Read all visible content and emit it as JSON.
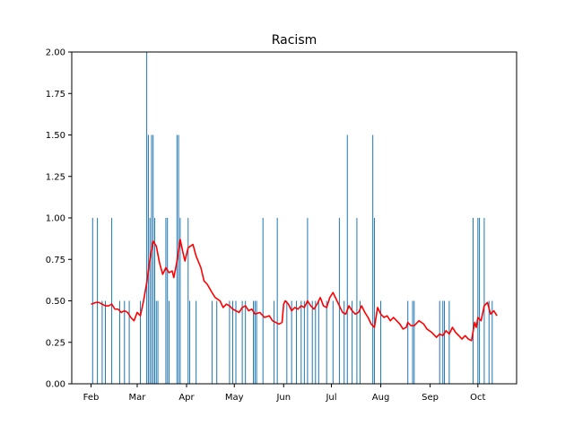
{
  "chart_data": {
    "type": "bar",
    "title": "Racism",
    "xlabel": "",
    "ylabel": "",
    "ylim": [
      0,
      2.0
    ],
    "y_ticks": [
      "0.00",
      "0.25",
      "0.50",
      "0.75",
      "1.00",
      "1.25",
      "1.50",
      "1.75",
      "2.00"
    ],
    "x_ticks": [
      "Feb",
      "Mar",
      "Apr",
      "May",
      "Jun",
      "Jul",
      "Aug",
      "Sep",
      "Oct"
    ],
    "grid": false,
    "legend": "none",
    "colors": {
      "bars": "#1f77b4",
      "line": "#ff0000"
    },
    "bars": [
      {
        "x": "02-02",
        "y": 1.0
      },
      {
        "x": "02-05",
        "y": 1.0
      },
      {
        "x": "02-08",
        "y": 0.5
      },
      {
        "x": "02-10",
        "y": 0.5
      },
      {
        "x": "02-14",
        "y": 1.0
      },
      {
        "x": "02-19",
        "y": 0.5
      },
      {
        "x": "02-22",
        "y": 0.5
      },
      {
        "x": "02-25",
        "y": 0.5
      },
      {
        "x": "03-03",
        "y": 0.5
      },
      {
        "x": "03-07",
        "y": 2.0
      },
      {
        "x": "03-08",
        "y": 1.5
      },
      {
        "x": "03-09",
        "y": 1.0
      },
      {
        "x": "03-10",
        "y": 1.5
      },
      {
        "x": "03-11",
        "y": 1.5
      },
      {
        "x": "03-12",
        "y": 1.0
      },
      {
        "x": "03-13",
        "y": 0.5
      },
      {
        "x": "03-14",
        "y": 0.5
      },
      {
        "x": "03-19",
        "y": 1.0
      },
      {
        "x": "03-20",
        "y": 1.0
      },
      {
        "x": "03-21",
        "y": 0.5
      },
      {
        "x": "03-26",
        "y": 1.5
      },
      {
        "x": "03-27",
        "y": 1.5
      },
      {
        "x": "03-28",
        "y": 1.0
      },
      {
        "x": "04-02",
        "y": 1.0
      },
      {
        "x": "04-03",
        "y": 0.5
      },
      {
        "x": "04-07",
        "y": 0.5
      },
      {
        "x": "04-17",
        "y": 0.5
      },
      {
        "x": "04-20",
        "y": 0.5
      },
      {
        "x": "04-28",
        "y": 0.5
      },
      {
        "x": "04-30",
        "y": 0.5
      },
      {
        "x": "05-02",
        "y": 0.5
      },
      {
        "x": "05-06",
        "y": 0.5
      },
      {
        "x": "05-08",
        "y": 0.5
      },
      {
        "x": "05-13",
        "y": 0.5
      },
      {
        "x": "05-14",
        "y": 0.5
      },
      {
        "x": "05-15",
        "y": 0.5
      },
      {
        "x": "05-19",
        "y": 1.0
      },
      {
        "x": "05-26",
        "y": 0.5
      },
      {
        "x": "05-28",
        "y": 1.0
      },
      {
        "x": "06-03",
        "y": 0.5
      },
      {
        "x": "06-06",
        "y": 0.5
      },
      {
        "x": "06-09",
        "y": 0.5
      },
      {
        "x": "06-12",
        "y": 0.5
      },
      {
        "x": "06-14",
        "y": 0.5
      },
      {
        "x": "06-16",
        "y": 1.0
      },
      {
        "x": "06-19",
        "y": 0.5
      },
      {
        "x": "06-21",
        "y": 0.5
      },
      {
        "x": "06-23",
        "y": 0.5
      },
      {
        "x": "06-28",
        "y": 0.5
      },
      {
        "x": "07-02",
        "y": 0.5
      },
      {
        "x": "07-06",
        "y": 1.0
      },
      {
        "x": "07-09",
        "y": 0.5
      },
      {
        "x": "07-11",
        "y": 1.5
      },
      {
        "x": "07-14",
        "y": 0.5
      },
      {
        "x": "07-17",
        "y": 1.0
      },
      {
        "x": "07-19",
        "y": 0.5
      },
      {
        "x": "07-27",
        "y": 1.5
      },
      {
        "x": "07-28",
        "y": 1.0
      },
      {
        "x": "08-01",
        "y": 0.5
      },
      {
        "x": "08-18",
        "y": 0.5
      },
      {
        "x": "08-21",
        "y": 0.5
      },
      {
        "x": "08-22",
        "y": 0.5
      },
      {
        "x": "09-07",
        "y": 0.5
      },
      {
        "x": "09-09",
        "y": 0.5
      },
      {
        "x": "09-10",
        "y": 0.5
      },
      {
        "x": "09-13",
        "y": 0.5
      },
      {
        "x": "09-28",
        "y": 1.0
      },
      {
        "x": "10-01",
        "y": 1.0
      },
      {
        "x": "10-02",
        "y": 1.0
      },
      {
        "x": "10-05",
        "y": 1.0
      },
      {
        "x": "10-08",
        "y": 0.5
      },
      {
        "x": "10-10",
        "y": 0.5
      }
    ],
    "series": [
      {
        "type": "line",
        "points": [
          [
            "02-01",
            0.48
          ],
          [
            "02-04",
            0.49
          ],
          [
            "02-06",
            0.49
          ],
          [
            "02-08",
            0.48
          ],
          [
            "02-10",
            0.47
          ],
          [
            "02-12",
            0.47
          ],
          [
            "02-14",
            0.48
          ],
          [
            "02-16",
            0.45
          ],
          [
            "02-18",
            0.45
          ],
          [
            "02-20",
            0.43
          ],
          [
            "02-22",
            0.44
          ],
          [
            "02-24",
            0.43
          ],
          [
            "02-26",
            0.4
          ],
          [
            "02-28",
            0.38
          ],
          [
            "03-01",
            0.43
          ],
          [
            "03-03",
            0.41
          ],
          [
            "03-05",
            0.5
          ],
          [
            "03-07",
            0.61
          ],
          [
            "03-09",
            0.75
          ],
          [
            "03-11",
            0.86
          ],
          [
            "03-13",
            0.83
          ],
          [
            "03-15",
            0.73
          ],
          [
            "03-17",
            0.66
          ],
          [
            "03-19",
            0.7
          ],
          [
            "03-21",
            0.67
          ],
          [
            "03-23",
            0.68
          ],
          [
            "03-24",
            0.64
          ],
          [
            "03-26",
            0.74
          ],
          [
            "03-28",
            0.87
          ],
          [
            "03-30",
            0.78
          ],
          [
            "03-31",
            0.74
          ],
          [
            "04-02",
            0.82
          ],
          [
            "04-05",
            0.84
          ],
          [
            "04-07",
            0.77
          ],
          [
            "04-10",
            0.7
          ],
          [
            "04-12",
            0.62
          ],
          [
            "04-14",
            0.6
          ],
          [
            "04-17",
            0.55
          ],
          [
            "04-19",
            0.52
          ],
          [
            "04-22",
            0.5
          ],
          [
            "04-24",
            0.46
          ],
          [
            "04-26",
            0.48
          ],
          [
            "04-28",
            0.47
          ],
          [
            "04-30",
            0.45
          ],
          [
            "05-02",
            0.44
          ],
          [
            "05-04",
            0.43
          ],
          [
            "05-06",
            0.46
          ],
          [
            "05-08",
            0.47
          ],
          [
            "05-10",
            0.44
          ],
          [
            "05-12",
            0.45
          ],
          [
            "05-14",
            0.42
          ],
          [
            "05-17",
            0.43
          ],
          [
            "05-20",
            0.4
          ],
          [
            "05-23",
            0.41
          ],
          [
            "05-25",
            0.38
          ],
          [
            "05-27",
            0.37
          ],
          [
            "05-29",
            0.36
          ],
          [
            "05-31",
            0.37
          ],
          [
            "06-01",
            0.48
          ],
          [
            "06-02",
            0.5
          ],
          [
            "06-04",
            0.48
          ],
          [
            "06-06",
            0.44
          ],
          [
            "06-08",
            0.46
          ],
          [
            "06-10",
            0.45
          ],
          [
            "06-12",
            0.47
          ],
          [
            "06-14",
            0.46
          ],
          [
            "06-16",
            0.5
          ],
          [
            "06-18",
            0.47
          ],
          [
            "06-20",
            0.45
          ],
          [
            "06-22",
            0.48
          ],
          [
            "06-24",
            0.52
          ],
          [
            "06-26",
            0.47
          ],
          [
            "06-28",
            0.46
          ],
          [
            "06-30",
            0.52
          ],
          [
            "07-02",
            0.55
          ],
          [
            "07-04",
            0.51
          ],
          [
            "07-06",
            0.47
          ],
          [
            "07-08",
            0.43
          ],
          [
            "07-10",
            0.42
          ],
          [
            "07-12",
            0.47
          ],
          [
            "07-14",
            0.44
          ],
          [
            "07-16",
            0.42
          ],
          [
            "07-18",
            0.43
          ],
          [
            "07-20",
            0.47
          ],
          [
            "07-22",
            0.43
          ],
          [
            "07-24",
            0.4
          ],
          [
            "07-26",
            0.36
          ],
          [
            "07-28",
            0.34
          ],
          [
            "07-30",
            0.46
          ],
          [
            "08-01",
            0.42
          ],
          [
            "08-03",
            0.4
          ],
          [
            "08-05",
            0.41
          ],
          [
            "08-07",
            0.38
          ],
          [
            "08-09",
            0.4
          ],
          [
            "08-11",
            0.38
          ],
          [
            "08-13",
            0.36
          ],
          [
            "08-15",
            0.33
          ],
          [
            "08-17",
            0.34
          ],
          [
            "08-18",
            0.37
          ],
          [
            "08-20",
            0.35
          ],
          [
            "08-22",
            0.35
          ],
          [
            "08-25",
            0.38
          ],
          [
            "08-28",
            0.36
          ],
          [
            "08-30",
            0.33
          ],
          [
            "09-02",
            0.31
          ],
          [
            "09-05",
            0.28
          ],
          [
            "09-07",
            0.3
          ],
          [
            "09-09",
            0.29
          ],
          [
            "09-11",
            0.32
          ],
          [
            "09-13",
            0.3
          ],
          [
            "09-15",
            0.34
          ],
          [
            "09-17",
            0.31
          ],
          [
            "09-19",
            0.29
          ],
          [
            "09-21",
            0.27
          ],
          [
            "09-23",
            0.29
          ],
          [
            "09-25",
            0.27
          ],
          [
            "09-27",
            0.26
          ],
          [
            "09-29",
            0.37
          ],
          [
            "09-30",
            0.34
          ],
          [
            "10-01",
            0.4
          ],
          [
            "10-03",
            0.38
          ],
          [
            "10-05",
            0.47
          ],
          [
            "10-07",
            0.49
          ],
          [
            "10-09",
            0.42
          ],
          [
            "10-11",
            0.44
          ],
          [
            "10-13",
            0.41
          ]
        ]
      }
    ]
  }
}
